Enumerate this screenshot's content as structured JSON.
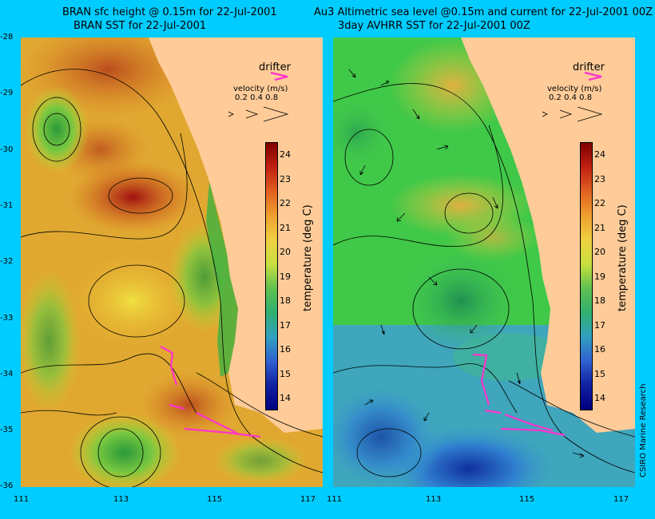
{
  "left_panel": {
    "title_line1": "BRAN sfc height @ 0.15m for 22-Jul-2001",
    "title_line2": "BRAN SST for 22-Jul-2001"
  },
  "right_panel": {
    "title_line1": "Au3 Altimetric sea level  @0.15m and current for 22-Jul-2001 00Z",
    "title_line2": "3day AVHRR SST for 22-Jul-2001 00Z"
  },
  "legend": {
    "drifter_label": "drifter",
    "velocity_label": "velocity (m/s)",
    "velocity_values": "0.2 0.4 0.8",
    "drifter_color": "#ff33cc"
  },
  "colorbar": {
    "label": "temperature (deg C)",
    "ticks": [
      "24",
      "23",
      "22",
      "21",
      "20",
      "19",
      "18",
      "17",
      "16",
      "15",
      "14"
    ],
    "range": [
      13.5,
      24.5
    ]
  },
  "axes": {
    "lat_ticks": [
      "-28",
      "-29",
      "-30",
      "-31",
      "-32",
      "-33",
      "-34",
      "-35",
      "-36"
    ],
    "lon_ticks": [
      "111",
      "113",
      "115",
      "117"
    ],
    "lat_range": [
      -36,
      -28
    ],
    "lon_range": [
      111,
      117.5
    ]
  },
  "credit": "CSIRO Marine Research"
}
